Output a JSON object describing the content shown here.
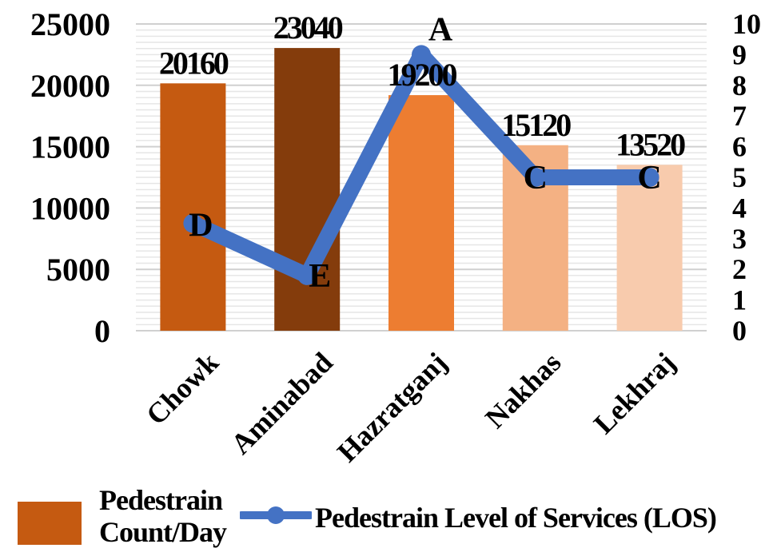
{
  "chart_data": {
    "type": "bar",
    "categories": [
      "Chowk",
      "Aminabad",
      "Hazratganj",
      "Nakhas",
      "Lekhraj"
    ],
    "series": [
      {
        "name": "Pedestrain Count/Day",
        "type": "bar",
        "axis": "left",
        "values": [
          20160,
          23040,
          19200,
          15120,
          13520
        ],
        "data_labels": [
          "20160",
          "23040",
          "19200",
          "15120",
          "13520"
        ],
        "colors": [
          "#C55A11",
          "#843C0C",
          "#ED7D31",
          "#F4B183",
          "#F8CBAD"
        ]
      },
      {
        "name": "Pedestrain Level of Services (LOS)",
        "type": "line",
        "axis": "right",
        "values": [
          3.5,
          1.8,
          9,
          5,
          5
        ],
        "data_labels": [
          "D",
          "E",
          "A",
          "C",
          "C"
        ],
        "color": "#4472C4"
      }
    ],
    "y_left": {
      "ylim": [
        0,
        25000
      ],
      "ticks": [
        "0",
        "5000",
        "10000",
        "15000",
        "20000",
        "25000"
      ]
    },
    "y_right": {
      "ylim": [
        0,
        10
      ],
      "ticks": [
        "0",
        "1",
        "2",
        "3",
        "4",
        "5",
        "6",
        "7",
        "8",
        "9",
        "10"
      ]
    },
    "grid": true,
    "legend": {
      "position": "bottom",
      "entries": [
        "Pedestrain Count/Day",
        "Pedestrain Level of Services (LOS)"
      ]
    },
    "title": "",
    "xlabel": "",
    "ylabel": ""
  },
  "legend": {
    "bar_label": "Pedestrain Count/Day",
    "line_label": "Pedestrain Level of Services (LOS)",
    "bar_color": "#C55A11",
    "line_color": "#4472C4"
  }
}
